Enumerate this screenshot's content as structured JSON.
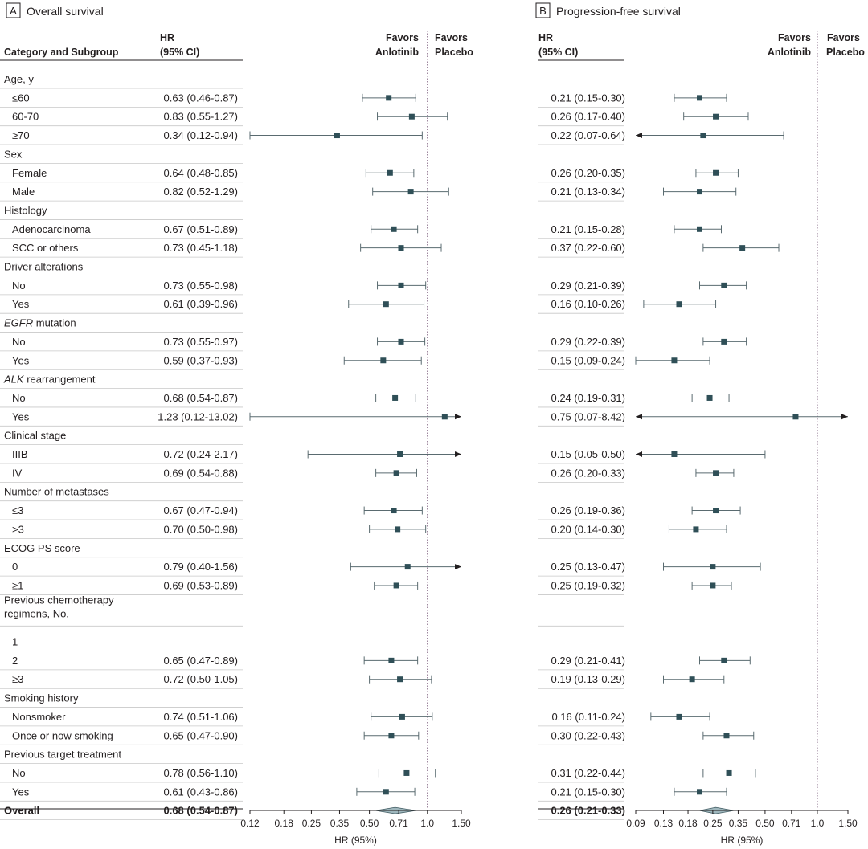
{
  "chart_data": {
    "type": "forest",
    "column_headers": {
      "category": "Category and Subgroup",
      "hr_line1": "HR",
      "hr_line2": "(95% CI)",
      "favors_left_1": "Favors",
      "favors_left_2": "Anlotinib",
      "favors_right_1": "Favors",
      "favors_right_2": "Placebo"
    },
    "rows": [
      {
        "kind": "category",
        "label": "Age, y"
      },
      {
        "kind": "subgroup",
        "label": "≤60",
        "os": "0.63 (0.46-0.87)",
        "pfs": "0.21 (0.15-0.30)"
      },
      {
        "kind": "subgroup",
        "label": "60-70",
        "os": "0.83 (0.55-1.27)",
        "pfs": "0.26 (0.17-0.40)"
      },
      {
        "kind": "subgroup",
        "label": "≥70",
        "os": "0.34 (0.12-0.94)",
        "pfs": "0.22 (0.07-0.64)"
      },
      {
        "kind": "category",
        "label": "Sex"
      },
      {
        "kind": "subgroup",
        "label": "Female",
        "os": "0.64 (0.48-0.85)",
        "pfs": "0.26 (0.20-0.35)"
      },
      {
        "kind": "subgroup",
        "label": "Male",
        "os": "0.82 (0.52-1.29)",
        "pfs": "0.21 (0.13-0.34)"
      },
      {
        "kind": "category",
        "label": "Histology"
      },
      {
        "kind": "subgroup",
        "label": "Adenocarcinoma",
        "os": "0.67 (0.51-0.89)",
        "pfs": "0.21 (0.15-0.28)"
      },
      {
        "kind": "subgroup",
        "label": "SCC or others",
        "os": "0.73 (0.45-1.18)",
        "pfs": "0.37 (0.22-0.60)"
      },
      {
        "kind": "category",
        "label": "Driver alterations"
      },
      {
        "kind": "subgroup",
        "label": "No",
        "os": "0.73 (0.55-0.98)",
        "pfs": "0.29 (0.21-0.39)"
      },
      {
        "kind": "subgroup",
        "label": "Yes",
        "os": "0.61 (0.39-0.96)",
        "pfs": "0.16 (0.10-0.26)"
      },
      {
        "kind": "category",
        "label": "EGFR",
        "label_suffix": " mutation",
        "italic": true
      },
      {
        "kind": "subgroup",
        "label": "No",
        "os": "0.73 (0.55-0.97)",
        "pfs": "0.29 (0.22-0.39)"
      },
      {
        "kind": "subgroup",
        "label": "Yes",
        "os": "0.59 (0.37-0.93)",
        "pfs": "0.15 (0.09-0.24)"
      },
      {
        "kind": "category",
        "label": "ALK",
        "label_suffix": " rearrangement",
        "italic": true
      },
      {
        "kind": "subgroup",
        "label": "No",
        "os": "0.68 (0.54-0.87)",
        "pfs": "0.24 (0.19-0.31)"
      },
      {
        "kind": "subgroup",
        "label": "Yes",
        "os": "1.23 (0.12-13.02)",
        "pfs": "0.75 (0.07-8.42)"
      },
      {
        "kind": "category",
        "label": "Clinical stage"
      },
      {
        "kind": "subgroup",
        "label": "IIIB",
        "os": "0.72 (0.24-2.17)",
        "pfs": "0.15 (0.05-0.50)"
      },
      {
        "kind": "subgroup",
        "label": "IV",
        "os": "0.69 (0.54-0.88)",
        "pfs": "0.26 (0.20-0.33)"
      },
      {
        "kind": "category",
        "label": "Number of metastases"
      },
      {
        "kind": "subgroup",
        "label": "≤3",
        "os": "0.67 (0.47-0.94)",
        "pfs": "0.26 (0.19-0.36)"
      },
      {
        "kind": "subgroup",
        "label": ">3",
        "os": "0.70 (0.50-0.98)",
        "pfs": "0.20 (0.14-0.30)"
      },
      {
        "kind": "category",
        "label": "ECOG PS score"
      },
      {
        "kind": "subgroup",
        "label": "0",
        "os": "0.79 (0.40-1.56)",
        "pfs": "0.25 (0.13-0.47)"
      },
      {
        "kind": "subgroup",
        "label": "≥1",
        "os": "0.69 (0.53-0.89)",
        "pfs": "0.25 (0.19-0.32)"
      },
      {
        "kind": "category2",
        "label": "Previous chemotherapy",
        "label2": "regimens, No."
      },
      {
        "kind": "subgroup",
        "label": "1",
        "os": null,
        "pfs": null
      },
      {
        "kind": "subgroup",
        "label": "2",
        "os": "0.65 (0.47-0.89)",
        "pfs": "0.29 (0.21-0.41)"
      },
      {
        "kind": "subgroup",
        "label": "≥3",
        "os": "0.72 (0.50-1.05)",
        "pfs": "0.19 (0.13-0.29)"
      },
      {
        "kind": "category",
        "label": "Smoking  history"
      },
      {
        "kind": "subgroup",
        "label": "Nonsmoker",
        "os": "0.74 (0.51-1.06)",
        "pfs": "0.16 (0.11-0.24)"
      },
      {
        "kind": "subgroup",
        "label": "Once or now smoking",
        "os": "0.65 (0.47-0.90)",
        "pfs": "0.30 (0.22-0.43)"
      },
      {
        "kind": "category",
        "label": "Previous target treatment"
      },
      {
        "kind": "subgroup",
        "label": "No",
        "os": "0.78 (0.56-1.10)",
        "pfs": "0.31 (0.22-0.44)"
      },
      {
        "kind": "subgroup",
        "label": "Yes",
        "os": "0.61 (0.43-0.86)",
        "pfs": "0.21 (0.15-0.30)"
      },
      {
        "kind": "overall",
        "label": "Overall",
        "os": "0.68 (0.54-0.87)",
        "pfs": "0.26 (0.21-0.33)"
      }
    ],
    "panels": [
      {
        "key": "os",
        "letter": "A",
        "title": "Overall survival",
        "x_scale": "log",
        "xlim": [
          0.12,
          1.5
        ],
        "ticks": [
          0.12,
          0.18,
          0.25,
          0.35,
          0.5,
          0.71,
          1.0,
          1.5
        ],
        "tick_labels": [
          "0.12",
          "0.18",
          "0.25",
          "0.35",
          "0.50",
          "0.71",
          "1.0",
          "1.50"
        ],
        "xlabel": "HR (95%)",
        "reference_line": 1.0
      },
      {
        "key": "pfs",
        "letter": "B",
        "title": "Progression-free survival",
        "x_scale": "log",
        "xlim": [
          0.09,
          1.5
        ],
        "ticks": [
          0.09,
          0.13,
          0.18,
          0.25,
          0.35,
          0.5,
          0.71,
          1.0,
          1.5
        ],
        "tick_labels": [
          "0.09",
          "0.13",
          "0.18",
          "0.25",
          "0.35",
          "0.50",
          "0.71",
          "1.0",
          "1.50"
        ],
        "xlabel": "HR (95%)",
        "reference_line": 1.0
      }
    ],
    "colors": {
      "marker": "#2f4f57",
      "line": "#5a6b70",
      "diamond_fill": "#9fb7bd",
      "diamond_stroke": "#3f5a61",
      "rule": "#c8c8c8",
      "text": "#231f20"
    }
  }
}
